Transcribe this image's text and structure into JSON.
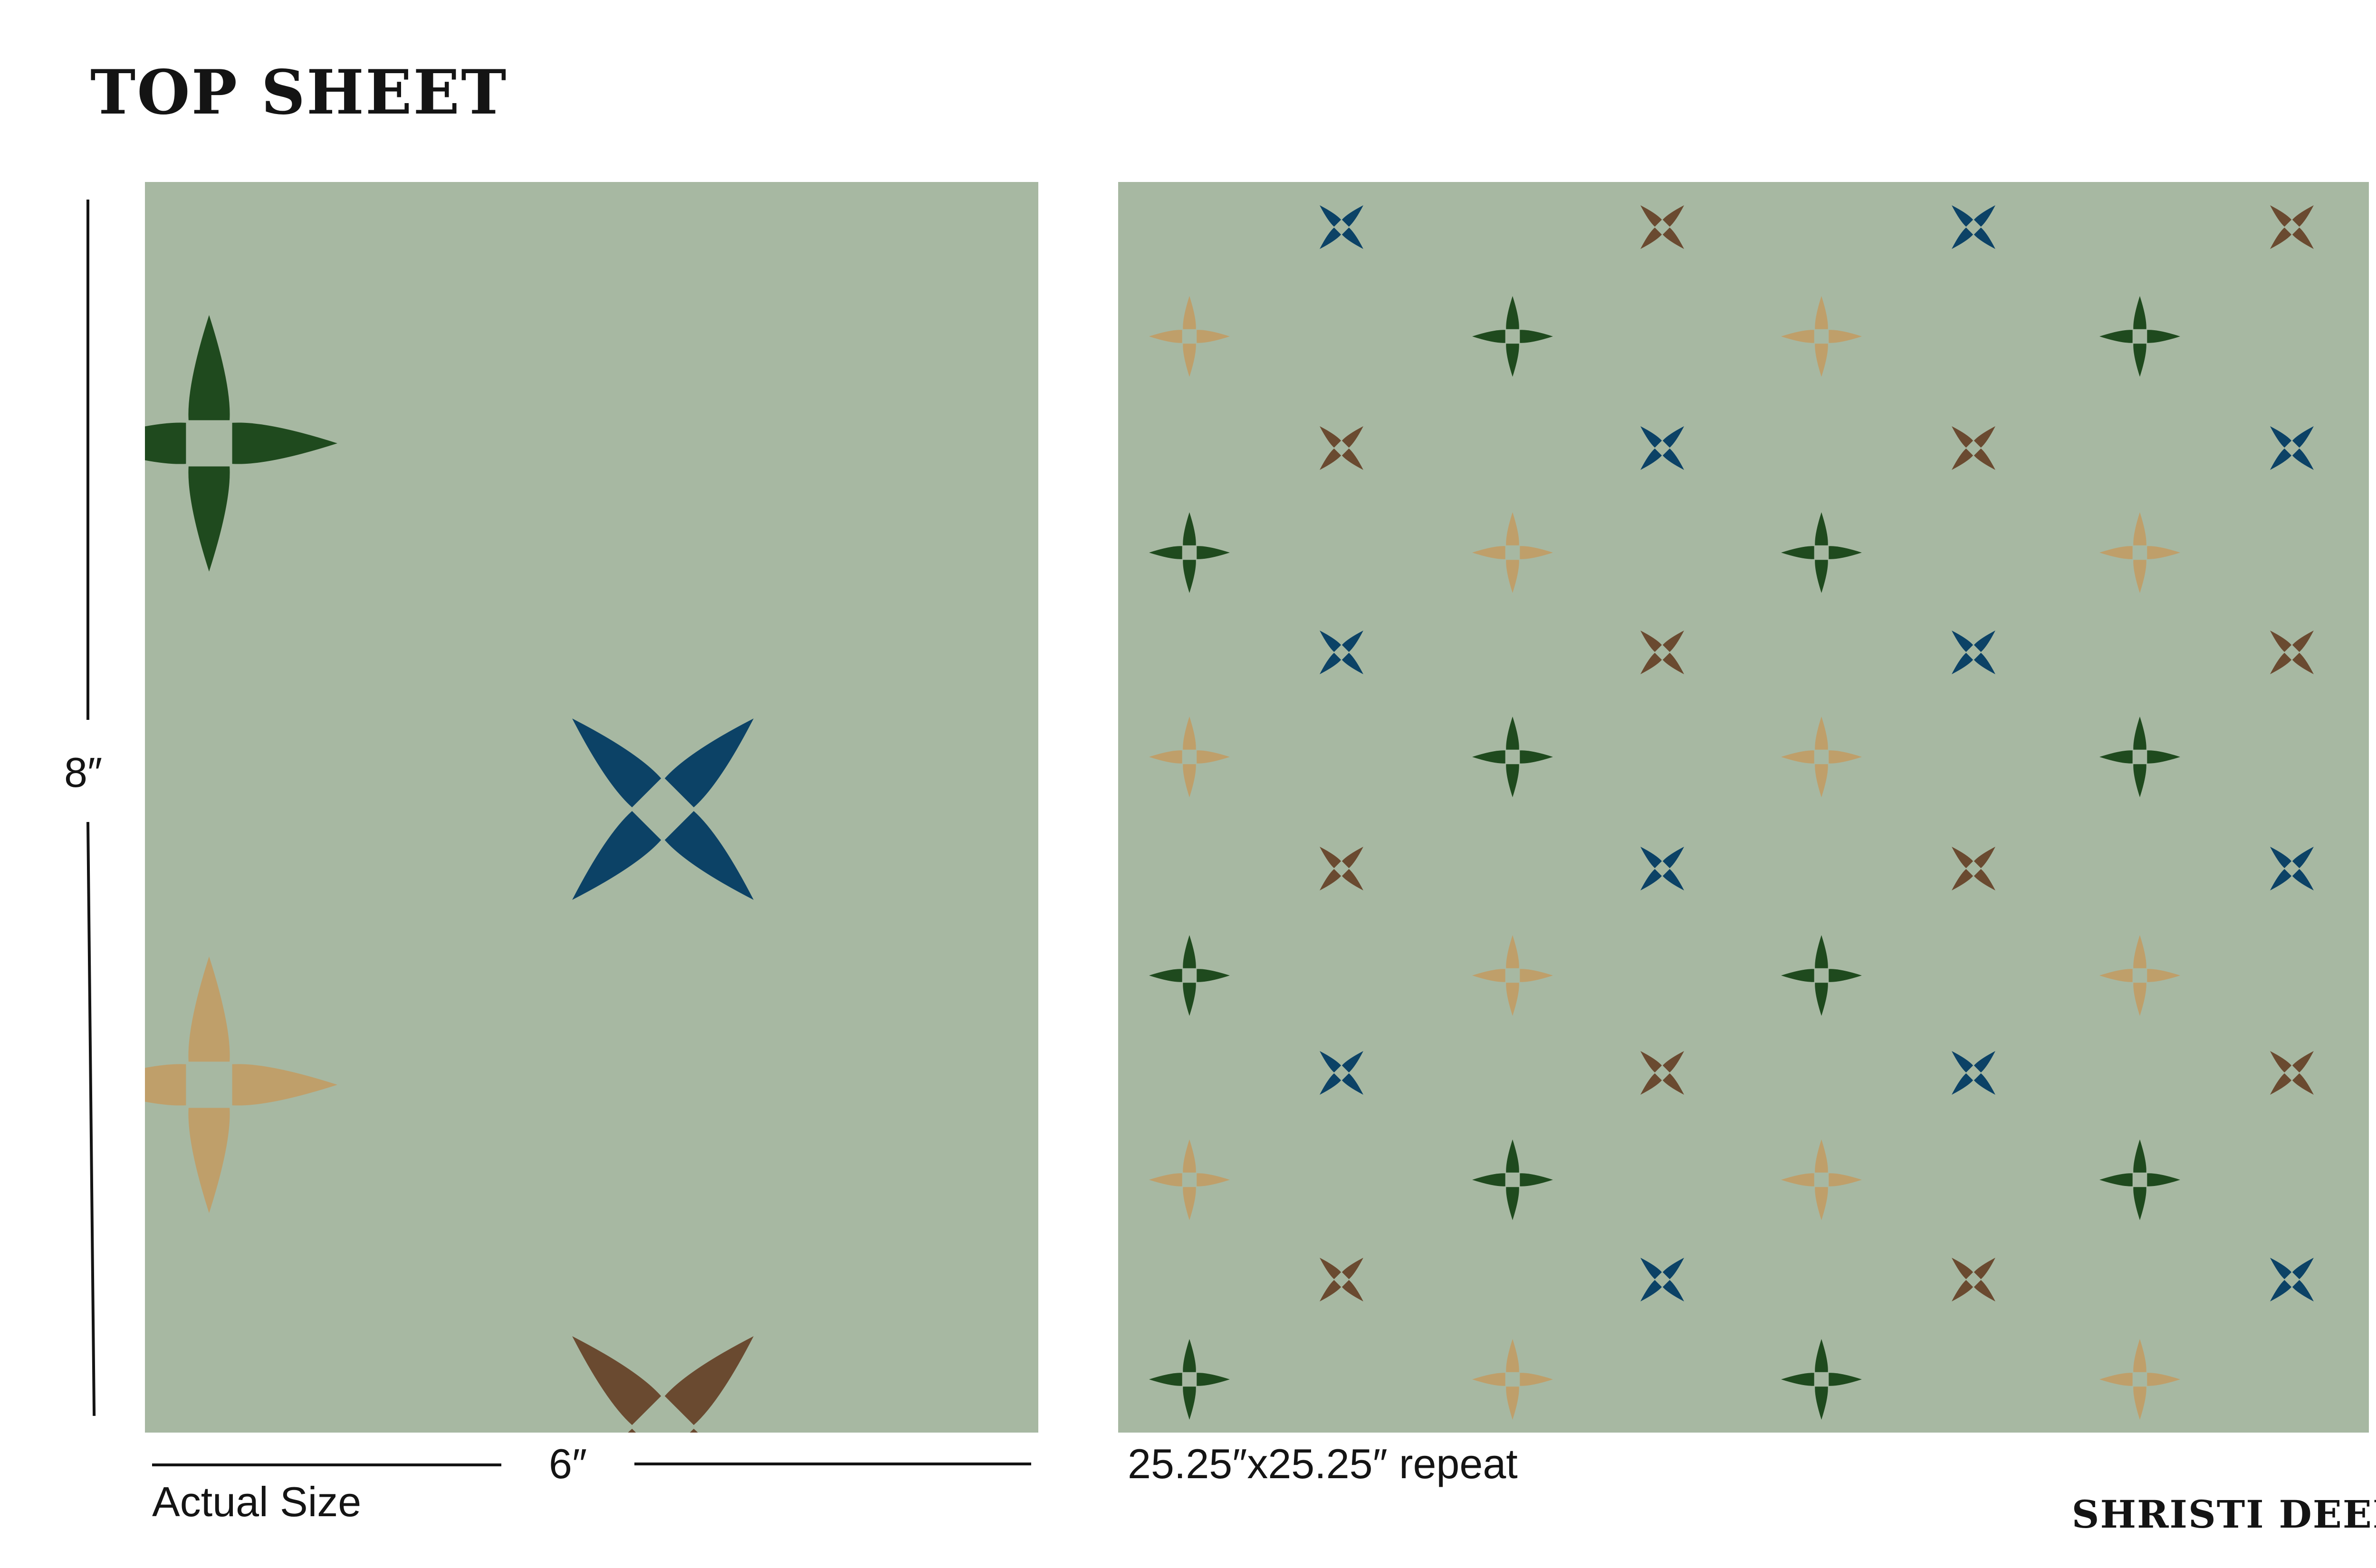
{
  "title": "TOP SHEET",
  "author": "SHRISTI DEEP",
  "dimensions": {
    "height_label": "8″",
    "width_label": "6″"
  },
  "captions": {
    "actual_size": "Actual Size",
    "repeat": "25.25″x25.25″ repeat"
  },
  "colors": {
    "background": "#a7b8a2",
    "green": "#1f4a1e",
    "blue": "#0c4266",
    "brown": "#6a4a30",
    "tan": "#bf9f6a"
  },
  "motif_icon": "four-point-star-icon"
}
